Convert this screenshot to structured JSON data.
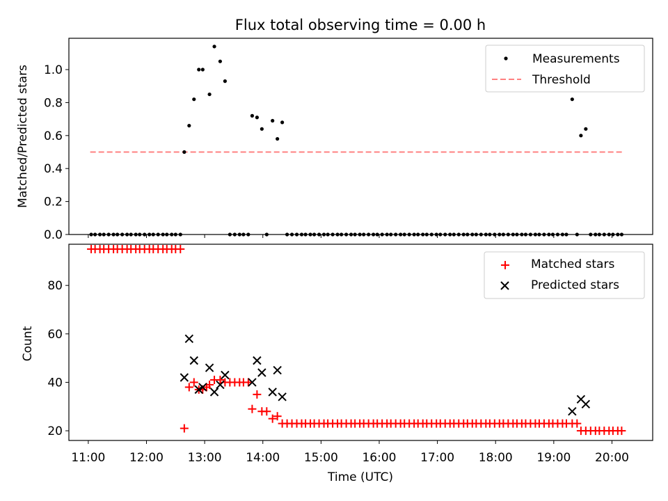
{
  "chart_data": [
    {
      "type": "scatter",
      "title": "Flux total observing time = 0.00 h",
      "xlabel": "",
      "ylabel": "Matched/Predicted stars",
      "xlim": [
        "10:40",
        "20:42"
      ],
      "ylim": [
        0,
        1.19
      ],
      "yticks": [
        "0.0",
        "0.2",
        "0.4",
        "0.6",
        "0.8",
        "1.0"
      ],
      "xticks": [
        "11:00",
        "12:00",
        "13:00",
        "14:00",
        "15:00",
        "16:00",
        "17:00",
        "18:00",
        "19:00",
        "20:00"
      ],
      "legend": {
        "placement": "upper right",
        "entries": [
          "Measurements",
          "Threshold"
        ]
      },
      "threshold": {
        "name": "Threshold",
        "value": 0.5,
        "x_start": "11:02",
        "x_end": "20:12",
        "color": "#ff8080"
      },
      "series": [
        {
          "name": "Measurements",
          "color": "#000000",
          "points": [
            [
              "11:03",
              0
            ],
            [
              "11:07",
              0
            ],
            [
              "11:12",
              0
            ],
            [
              "11:16",
              0
            ],
            [
              "11:21",
              0
            ],
            [
              "11:26",
              0
            ],
            [
              "11:30",
              0
            ],
            [
              "11:35",
              0
            ],
            [
              "11:40",
              0
            ],
            [
              "11:44",
              0
            ],
            [
              "11:49",
              0
            ],
            [
              "11:53",
              0
            ],
            [
              "11:58",
              0
            ],
            [
              "12:03",
              0
            ],
            [
              "12:07",
              0
            ],
            [
              "12:12",
              0
            ],
            [
              "12:17",
              0
            ],
            [
              "12:21",
              0
            ],
            [
              "12:26",
              0
            ],
            [
              "12:30",
              0
            ],
            [
              "12:35",
              0
            ],
            [
              "12:39",
              0.5
            ],
            [
              "12:44",
              0.66
            ],
            [
              "12:49",
              0.82
            ],
            [
              "12:54",
              1.0
            ],
            [
              "12:58",
              1.0
            ],
            [
              "13:05",
              0.85
            ],
            [
              "13:10",
              1.14
            ],
            [
              "13:16",
              1.05
            ],
            [
              "13:21",
              0.93
            ],
            [
              "13:26",
              0
            ],
            [
              "13:31",
              0
            ],
            [
              "13:36",
              0
            ],
            [
              "13:40",
              0
            ],
            [
              "13:45",
              0
            ],
            [
              "13:49",
              0.72
            ],
            [
              "13:54",
              0.71
            ],
            [
              "13:59",
              0.64
            ],
            [
              "14:04",
              0
            ],
            [
              "14:10",
              0.69
            ],
            [
              "14:15",
              0.58
            ],
            [
              "14:20",
              0.68
            ],
            [
              "14:25",
              0
            ],
            [
              "14:30",
              0
            ],
            [
              "14:35",
              0
            ],
            [
              "14:40",
              0
            ],
            [
              "14:44",
              0
            ],
            [
              "14:49",
              0
            ],
            [
              "14:53",
              0
            ],
            [
              "14:58",
              0
            ],
            [
              "15:03",
              0
            ],
            [
              "15:07",
              0
            ],
            [
              "15:12",
              0
            ],
            [
              "15:17",
              0
            ],
            [
              "15:21",
              0
            ],
            [
              "15:26",
              0
            ],
            [
              "15:31",
              0
            ],
            [
              "15:35",
              0
            ],
            [
              "15:40",
              0
            ],
            [
              "15:44",
              0
            ],
            [
              "15:49",
              0
            ],
            [
              "15:54",
              0
            ],
            [
              "15:58",
              0
            ],
            [
              "16:03",
              0
            ],
            [
              "16:08",
              0
            ],
            [
              "16:12",
              0
            ],
            [
              "16:17",
              0
            ],
            [
              "16:22",
              0
            ],
            [
              "16:26",
              0
            ],
            [
              "16:31",
              0
            ],
            [
              "16:36",
              0
            ],
            [
              "16:40",
              0
            ],
            [
              "16:45",
              0
            ],
            [
              "16:49",
              0
            ],
            [
              "16:54",
              0
            ],
            [
              "16:59",
              0
            ],
            [
              "17:03",
              0
            ],
            [
              "17:08",
              0
            ],
            [
              "17:13",
              0
            ],
            [
              "17:17",
              0
            ],
            [
              "17:22",
              0
            ],
            [
              "17:27",
              0
            ],
            [
              "17:31",
              0
            ],
            [
              "17:36",
              0
            ],
            [
              "17:40",
              0
            ],
            [
              "17:45",
              0
            ],
            [
              "17:50",
              0
            ],
            [
              "17:54",
              0
            ],
            [
              "17:59",
              0
            ],
            [
              "18:04",
              0
            ],
            [
              "18:08",
              0
            ],
            [
              "18:13",
              0
            ],
            [
              "18:18",
              0
            ],
            [
              "18:22",
              0
            ],
            [
              "18:27",
              0
            ],
            [
              "18:31",
              0
            ],
            [
              "18:36",
              0
            ],
            [
              "18:41",
              0
            ],
            [
              "18:45",
              0
            ],
            [
              "18:50",
              0
            ],
            [
              "18:55",
              0
            ],
            [
              "18:59",
              0
            ],
            [
              "19:04",
              0
            ],
            [
              "19:09",
              0
            ],
            [
              "19:13",
              0
            ],
            [
              "19:19",
              0.82
            ],
            [
              "19:24",
              0
            ],
            [
              "19:28",
              0.6
            ],
            [
              "19:33",
              0.64
            ],
            [
              "19:38",
              0
            ],
            [
              "19:43",
              0
            ],
            [
              "19:47",
              0
            ],
            [
              "19:52",
              0
            ],
            [
              "19:57",
              0
            ],
            [
              "20:01",
              0
            ],
            [
              "20:06",
              0
            ],
            [
              "20:10",
              0
            ]
          ]
        }
      ]
    },
    {
      "type": "scatter",
      "title": "",
      "xlabel": "Time (UTC)",
      "ylabel": "Count",
      "xlim": [
        "10:40",
        "20:42"
      ],
      "ylim": [
        16,
        97
      ],
      "yticks": [
        "20",
        "40",
        "60",
        "80"
      ],
      "xticks": [
        "11:00",
        "12:00",
        "13:00",
        "14:00",
        "15:00",
        "16:00",
        "17:00",
        "18:00",
        "19:00",
        "20:00"
      ],
      "legend": {
        "placement": "upper right",
        "entries": [
          "Matched stars",
          "Predicted stars"
        ]
      },
      "series": [
        {
          "name": "Matched stars",
          "marker": "+",
          "color": "#ff0000",
          "points": [
            [
              "11:03",
              95
            ],
            [
              "11:07",
              95
            ],
            [
              "11:12",
              95
            ],
            [
              "11:16",
              95
            ],
            [
              "11:21",
              95
            ],
            [
              "11:26",
              95
            ],
            [
              "11:30",
              95
            ],
            [
              "11:35",
              95
            ],
            [
              "11:40",
              95
            ],
            [
              "11:44",
              95
            ],
            [
              "11:49",
              95
            ],
            [
              "11:53",
              95
            ],
            [
              "11:58",
              95
            ],
            [
              "12:03",
              95
            ],
            [
              "12:07",
              95
            ],
            [
              "12:12",
              95
            ],
            [
              "12:17",
              95
            ],
            [
              "12:21",
              95
            ],
            [
              "12:26",
              95
            ],
            [
              "12:30",
              95
            ],
            [
              "12:35",
              95
            ],
            [
              "12:39",
              21
            ],
            [
              "12:44",
              38
            ],
            [
              "12:49",
              40
            ],
            [
              "12:54",
              37
            ],
            [
              "12:58",
              37
            ],
            [
              "13:02",
              38
            ],
            [
              "13:05",
              39
            ],
            [
              "13:10",
              41
            ],
            [
              "13:16",
              41
            ],
            [
              "13:21",
              40
            ],
            [
              "13:26",
              40
            ],
            [
              "13:31",
              40
            ],
            [
              "13:36",
              40
            ],
            [
              "13:40",
              40
            ],
            [
              "13:45",
              40
            ],
            [
              "13:49",
              29
            ],
            [
              "13:54",
              35
            ],
            [
              "13:59",
              28
            ],
            [
              "14:04",
              28
            ],
            [
              "14:10",
              25
            ],
            [
              "14:15",
              26
            ],
            [
              "14:20",
              23
            ],
            [
              "14:25",
              23
            ],
            [
              "14:30",
              23
            ],
            [
              "14:35",
              23
            ],
            [
              "14:40",
              23
            ],
            [
              "14:44",
              23
            ],
            [
              "14:49",
              23
            ],
            [
              "14:53",
              23
            ],
            [
              "14:58",
              23
            ],
            [
              "15:03",
              23
            ],
            [
              "15:07",
              23
            ],
            [
              "15:12",
              23
            ],
            [
              "15:17",
              23
            ],
            [
              "15:21",
              23
            ],
            [
              "15:26",
              23
            ],
            [
              "15:31",
              23
            ],
            [
              "15:35",
              23
            ],
            [
              "15:40",
              23
            ],
            [
              "15:44",
              23
            ],
            [
              "15:49",
              23
            ],
            [
              "15:54",
              23
            ],
            [
              "15:58",
              23
            ],
            [
              "16:03",
              23
            ],
            [
              "16:08",
              23
            ],
            [
              "16:12",
              23
            ],
            [
              "16:17",
              23
            ],
            [
              "16:22",
              23
            ],
            [
              "16:26",
              23
            ],
            [
              "16:31",
              23
            ],
            [
              "16:36",
              23
            ],
            [
              "16:40",
              23
            ],
            [
              "16:45",
              23
            ],
            [
              "16:49",
              23
            ],
            [
              "16:54",
              23
            ],
            [
              "16:59",
              23
            ],
            [
              "17:03",
              23
            ],
            [
              "17:08",
              23
            ],
            [
              "17:13",
              23
            ],
            [
              "17:17",
              23
            ],
            [
              "17:22",
              23
            ],
            [
              "17:27",
              23
            ],
            [
              "17:31",
              23
            ],
            [
              "17:36",
              23
            ],
            [
              "17:40",
              23
            ],
            [
              "17:45",
              23
            ],
            [
              "17:50",
              23
            ],
            [
              "17:54",
              23
            ],
            [
              "17:59",
              23
            ],
            [
              "18:04",
              23
            ],
            [
              "18:08",
              23
            ],
            [
              "18:13",
              23
            ],
            [
              "18:18",
              23
            ],
            [
              "18:22",
              23
            ],
            [
              "18:27",
              23
            ],
            [
              "18:31",
              23
            ],
            [
              "18:36",
              23
            ],
            [
              "18:41",
              23
            ],
            [
              "18:45",
              23
            ],
            [
              "18:50",
              23
            ],
            [
              "18:55",
              23
            ],
            [
              "18:59",
              23
            ],
            [
              "19:04",
              23
            ],
            [
              "19:09",
              23
            ],
            [
              "19:13",
              23
            ],
            [
              "19:19",
              23
            ],
            [
              "19:24",
              23
            ],
            [
              "19:28",
              20
            ],
            [
              "19:33",
              20
            ],
            [
              "19:38",
              20
            ],
            [
              "19:43",
              20
            ],
            [
              "19:47",
              20
            ],
            [
              "19:52",
              20
            ],
            [
              "19:57",
              20
            ],
            [
              "20:01",
              20
            ],
            [
              "20:06",
              20
            ],
            [
              "20:10",
              20
            ]
          ]
        },
        {
          "name": "Predicted stars",
          "marker": "x",
          "color": "#000000",
          "points": [
            [
              "12:39",
              42
            ],
            [
              "12:44",
              58
            ],
            [
              "12:49",
              49
            ],
            [
              "12:54",
              37
            ],
            [
              "12:58",
              38
            ],
            [
              "13:05",
              46
            ],
            [
              "13:10",
              36
            ],
            [
              "13:16",
              39
            ],
            [
              "13:21",
              43
            ],
            [
              "13:49",
              40
            ],
            [
              "13:54",
              49
            ],
            [
              "13:59",
              44
            ],
            [
              "14:10",
              36
            ],
            [
              "14:15",
              45
            ],
            [
              "14:20",
              34
            ],
            [
              "19:19",
              28
            ],
            [
              "19:28",
              33
            ],
            [
              "19:33",
              31
            ]
          ]
        }
      ]
    }
  ]
}
